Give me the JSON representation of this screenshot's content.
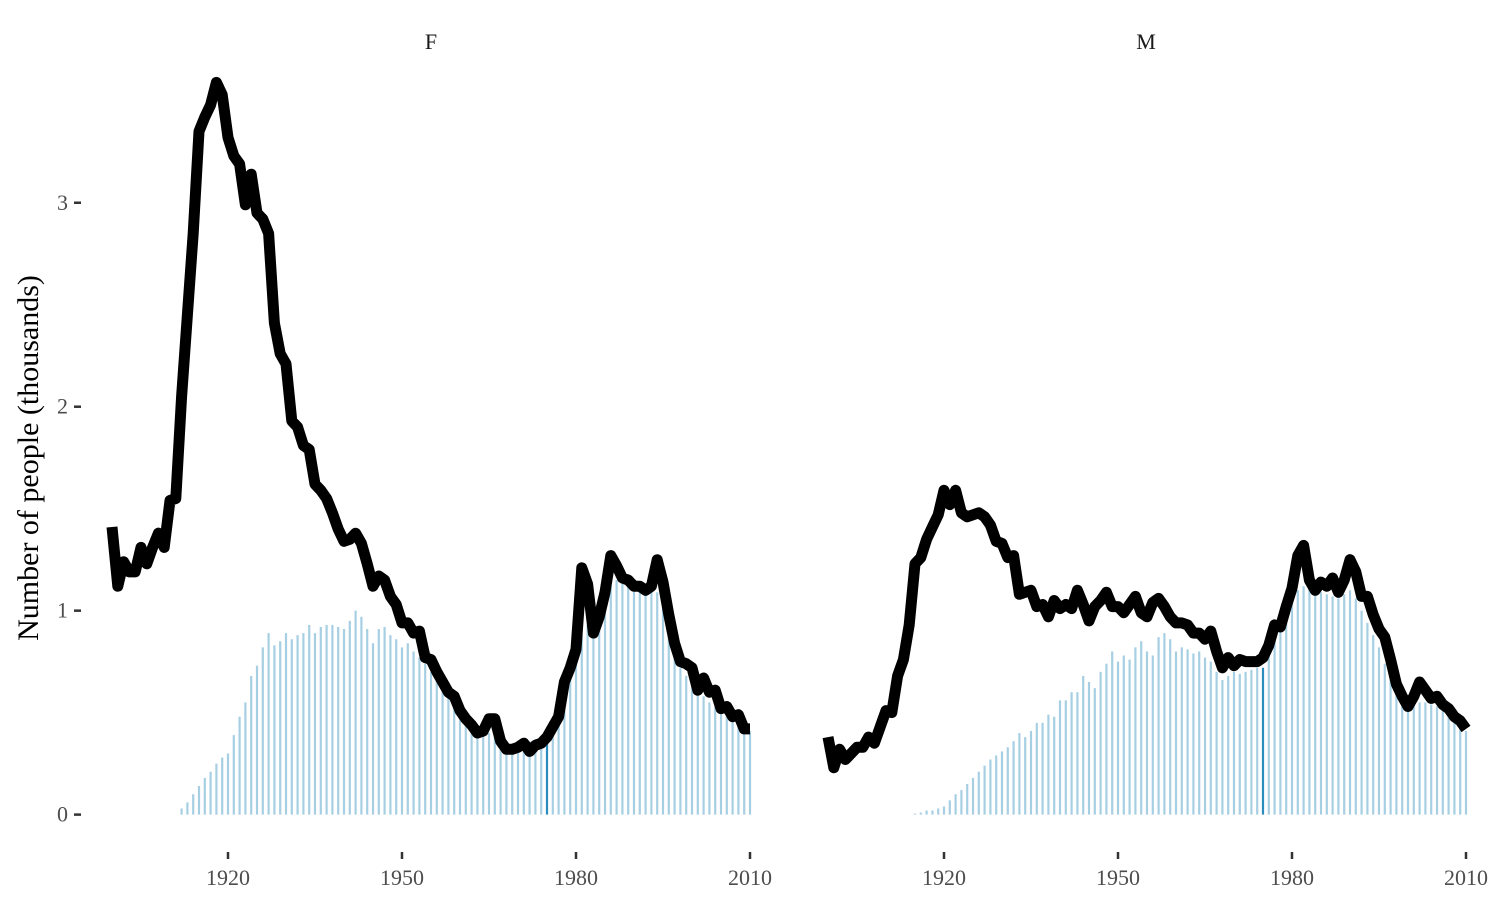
{
  "chart_data": {
    "type": "bar+line",
    "ylabel": "Number of people (thousands)",
    "y_ticks": [
      0,
      1,
      2,
      3
    ],
    "y_tick_labels": [
      "0",
      "1",
      "2",
      "3"
    ],
    "x_ticks": [
      1920,
      1950,
      1980,
      2010
    ],
    "x_tick_labels": [
      "1920",
      "1950",
      "1980",
      "2010"
    ],
    "ylim": [
      -0.1,
      3.7
    ],
    "grid": false,
    "legend": "none",
    "colors": {
      "line": "#000000",
      "bars": "#a6cfe3",
      "highlight_bar": "#2b8cbe"
    },
    "panels": [
      {
        "strip": "F",
        "xlim": [
          1900,
          2010
        ],
        "highlight_year": 1975,
        "line": {
          "x": [
            1900,
            1901,
            1902,
            1903,
            1904,
            1905,
            1906,
            1907,
            1908,
            1909,
            1910,
            1911,
            1912,
            1913,
            1914,
            1915,
            1916,
            1917,
            1918,
            1919,
            1920,
            1921,
            1922,
            1923,
            1924,
            1925,
            1926,
            1927,
            1928,
            1929,
            1930,
            1931,
            1932,
            1933,
            1934,
            1935,
            1936,
            1937,
            1938,
            1939,
            1940,
            1941,
            1942,
            1943,
            1944,
            1945,
            1946,
            1947,
            1948,
            1949,
            1950,
            1951,
            1952,
            1953,
            1954,
            1955,
            1956,
            1957,
            1958,
            1959,
            1960,
            1961,
            1962,
            1963,
            1964,
            1965,
            1966,
            1967,
            1968,
            1969,
            1970,
            1971,
            1972,
            1973,
            1974,
            1975,
            1976,
            1977,
            1978,
            1979,
            1980,
            1981,
            1982,
            1983,
            1984,
            1985,
            1986,
            1987,
            1988,
            1989,
            1990,
            1991,
            1992,
            1993,
            1994,
            1995,
            1996,
            1997,
            1998,
            1999,
            2000,
            2001,
            2002,
            2003,
            2004,
            2005,
            2006,
            2007,
            2008,
            2009,
            2010
          ],
          "y": [
            1.41,
            1.12,
            1.24,
            1.19,
            1.19,
            1.31,
            1.23,
            1.31,
            1.38,
            1.31,
            1.54,
            1.55,
            2.05,
            2.45,
            2.85,
            3.35,
            3.42,
            3.48,
            3.59,
            3.53,
            3.32,
            3.23,
            3.19,
            2.99,
            3.14,
            2.95,
            2.92,
            2.85,
            2.41,
            2.26,
            2.21,
            1.93,
            1.9,
            1.81,
            1.79,
            1.62,
            1.59,
            1.55,
            1.48,
            1.4,
            1.34,
            1.35,
            1.38,
            1.33,
            1.23,
            1.12,
            1.17,
            1.15,
            1.07,
            1.03,
            0.94,
            0.94,
            0.89,
            0.9,
            0.77,
            0.76,
            0.7,
            0.65,
            0.6,
            0.58,
            0.51,
            0.47,
            0.44,
            0.4,
            0.41,
            0.47,
            0.47,
            0.36,
            0.32,
            0.32,
            0.33,
            0.35,
            0.31,
            0.34,
            0.35,
            0.38,
            0.43,
            0.48,
            0.65,
            0.72,
            0.81,
            1.21,
            1.13,
            0.89,
            0.97,
            1.09,
            1.27,
            1.22,
            1.16,
            1.15,
            1.12,
            1.12,
            1.1,
            1.12,
            1.25,
            1.14,
            0.98,
            0.84,
            0.75,
            0.74,
            0.72,
            0.61,
            0.67,
            0.6,
            0.61,
            0.52,
            0.53,
            0.48,
            0.49,
            0.42,
            0.42
          ]
        },
        "bars": {
          "x": [
            1912,
            1913,
            1914,
            1915,
            1916,
            1917,
            1918,
            1919,
            1920,
            1921,
            1922,
            1923,
            1924,
            1925,
            1926,
            1927,
            1928,
            1929,
            1930,
            1931,
            1932,
            1933,
            1934,
            1935,
            1936,
            1937,
            1938,
            1939,
            1940,
            1941,
            1942,
            1943,
            1944,
            1945,
            1946,
            1947,
            1948,
            1949,
            1950,
            1951,
            1952,
            1953,
            1954,
            1955,
            1956,
            1957,
            1958,
            1959,
            1960,
            1961,
            1962,
            1963,
            1964,
            1965,
            1966,
            1967,
            1968,
            1969,
            1970,
            1971,
            1972,
            1973,
            1974,
            1975,
            1976,
            1977,
            1978,
            1979,
            1980,
            1981,
            1982,
            1983,
            1984,
            1985,
            1986,
            1987,
            1988,
            1989,
            1990,
            1991,
            1992,
            1993,
            1994,
            1995,
            1996,
            1997,
            1998,
            1999,
            2000,
            2001,
            2002,
            2003,
            2004,
            2005,
            2006,
            2007,
            2008,
            2009,
            2010
          ],
          "y": [
            0.03,
            0.06,
            0.1,
            0.14,
            0.18,
            0.21,
            0.25,
            0.28,
            0.3,
            0.39,
            0.48,
            0.55,
            0.68,
            0.73,
            0.82,
            0.89,
            0.83,
            0.85,
            0.89,
            0.86,
            0.88,
            0.89,
            0.93,
            0.89,
            0.92,
            0.93,
            0.93,
            0.92,
            0.91,
            0.95,
            1.0,
            0.97,
            0.91,
            0.84,
            0.91,
            0.92,
            0.88,
            0.86,
            0.82,
            0.84,
            0.8,
            0.77,
            0.74,
            0.7,
            0.67,
            0.63,
            0.6,
            0.57,
            0.52,
            0.5,
            0.47,
            0.44,
            0.42,
            0.4,
            0.39,
            0.37,
            0.35,
            0.34,
            0.34,
            0.35,
            0.36,
            0.37,
            0.38,
            0.38,
            0.42,
            0.48,
            0.6,
            0.7,
            0.8,
            0.88,
            0.93,
            0.98,
            1.03,
            1.08,
            1.12,
            1.15,
            1.14,
            1.13,
            1.12,
            1.11,
            1.1,
            1.1,
            1.09,
            1.03,
            0.93,
            0.8,
            0.72,
            0.68,
            0.65,
            0.61,
            0.58,
            0.55,
            0.53,
            0.5,
            0.48,
            0.46,
            0.45,
            0.44,
            0.41
          ]
        }
      },
      {
        "strip": "M",
        "xlim": [
          1900,
          2010
        ],
        "highlight_year": 1975,
        "line": {
          "x": [
            1900,
            1901,
            1902,
            1903,
            1904,
            1905,
            1906,
            1907,
            1908,
            1909,
            1910,
            1911,
            1912,
            1913,
            1914,
            1915,
            1916,
            1917,
            1918,
            1919,
            1920,
            1921,
            1922,
            1923,
            1924,
            1925,
            1926,
            1927,
            1928,
            1929,
            1930,
            1931,
            1932,
            1933,
            1934,
            1935,
            1936,
            1937,
            1938,
            1939,
            1940,
            1941,
            1942,
            1943,
            1944,
            1945,
            1946,
            1947,
            1948,
            1949,
            1950,
            1951,
            1952,
            1953,
            1954,
            1955,
            1956,
            1957,
            1958,
            1959,
            1960,
            1961,
            1962,
            1963,
            1964,
            1965,
            1966,
            1967,
            1968,
            1969,
            1970,
            1971,
            1972,
            1973,
            1974,
            1975,
            1976,
            1977,
            1978,
            1979,
            1980,
            1981,
            1982,
            1983,
            1984,
            1985,
            1986,
            1987,
            1988,
            1989,
            1990,
            1991,
            1992,
            1993,
            1994,
            1995,
            1996,
            1997,
            1998,
            1999,
            2000,
            2001,
            2002,
            2003,
            2004,
            2005,
            2006,
            2007,
            2008,
            2009,
            2010
          ],
          "y": [
            0.38,
            0.23,
            0.32,
            0.27,
            0.3,
            0.33,
            0.33,
            0.38,
            0.35,
            0.43,
            0.51,
            0.5,
            0.68,
            0.76,
            0.93,
            1.23,
            1.26,
            1.35,
            1.41,
            1.47,
            1.59,
            1.52,
            1.59,
            1.48,
            1.46,
            1.47,
            1.48,
            1.46,
            1.42,
            1.34,
            1.33,
            1.26,
            1.27,
            1.08,
            1.09,
            1.1,
            1.02,
            1.03,
            0.97,
            1.05,
            1.01,
            1.03,
            1.01,
            1.1,
            1.03,
            0.95,
            1.02,
            1.05,
            1.09,
            1.02,
            1.02,
            0.99,
            1.03,
            1.07,
            0.99,
            0.97,
            1.04,
            1.06,
            1.02,
            0.97,
            0.94,
            0.94,
            0.93,
            0.89,
            0.89,
            0.86,
            0.9,
            0.8,
            0.72,
            0.77,
            0.73,
            0.76,
            0.75,
            0.75,
            0.75,
            0.77,
            0.83,
            0.93,
            0.92,
            1.02,
            1.11,
            1.27,
            1.32,
            1.15,
            1.1,
            1.14,
            1.12,
            1.16,
            1.09,
            1.15,
            1.25,
            1.19,
            1.07,
            1.07,
            0.98,
            0.91,
            0.87,
            0.76,
            0.64,
            0.58,
            0.53,
            0.58,
            0.65,
            0.61,
            0.57,
            0.58,
            0.54,
            0.52,
            0.48,
            0.46,
            0.42
          ]
        },
        "bars": {
          "x": [
            1915,
            1916,
            1917,
            1918,
            1919,
            1920,
            1921,
            1922,
            1923,
            1924,
            1925,
            1926,
            1927,
            1928,
            1929,
            1930,
            1931,
            1932,
            1933,
            1934,
            1935,
            1936,
            1937,
            1938,
            1939,
            1940,
            1941,
            1942,
            1943,
            1944,
            1945,
            1946,
            1947,
            1948,
            1949,
            1950,
            1951,
            1952,
            1953,
            1954,
            1955,
            1956,
            1957,
            1958,
            1959,
            1960,
            1961,
            1962,
            1963,
            1964,
            1965,
            1966,
            1967,
            1968,
            1969,
            1970,
            1971,
            1972,
            1973,
            1974,
            1975,
            1976,
            1977,
            1978,
            1979,
            1980,
            1981,
            1982,
            1983,
            1984,
            1985,
            1986,
            1987,
            1988,
            1989,
            1990,
            1991,
            1992,
            1993,
            1994,
            1995,
            1996,
            1997,
            1998,
            1999,
            2000,
            2001,
            2002,
            2003,
            2004,
            2005,
            2006,
            2007,
            2008,
            2009,
            2010
          ],
          "y": [
            0.005,
            0.01,
            0.02,
            0.02,
            0.03,
            0.04,
            0.07,
            0.1,
            0.12,
            0.15,
            0.18,
            0.21,
            0.24,
            0.27,
            0.29,
            0.31,
            0.33,
            0.36,
            0.4,
            0.38,
            0.41,
            0.45,
            0.45,
            0.49,
            0.48,
            0.56,
            0.56,
            0.6,
            0.6,
            0.68,
            0.65,
            0.62,
            0.7,
            0.74,
            0.8,
            0.75,
            0.78,
            0.76,
            0.82,
            0.85,
            0.8,
            0.78,
            0.87,
            0.89,
            0.86,
            0.8,
            0.82,
            0.81,
            0.79,
            0.8,
            0.77,
            0.75,
            0.7,
            0.66,
            0.68,
            0.7,
            0.69,
            0.7,
            0.71,
            0.72,
            0.72,
            0.78,
            0.85,
            0.92,
            1.0,
            1.06,
            1.1,
            1.12,
            1.11,
            1.1,
            1.09,
            1.08,
            1.07,
            1.06,
            1.08,
            1.1,
            1.06,
            1.0,
            0.94,
            0.88,
            0.82,
            0.74,
            0.68,
            0.64,
            0.58,
            0.57,
            0.56,
            0.55,
            0.55,
            0.54,
            0.53,
            0.52,
            0.5,
            0.47,
            0.44,
            0.41
          ]
        }
      }
    ]
  }
}
